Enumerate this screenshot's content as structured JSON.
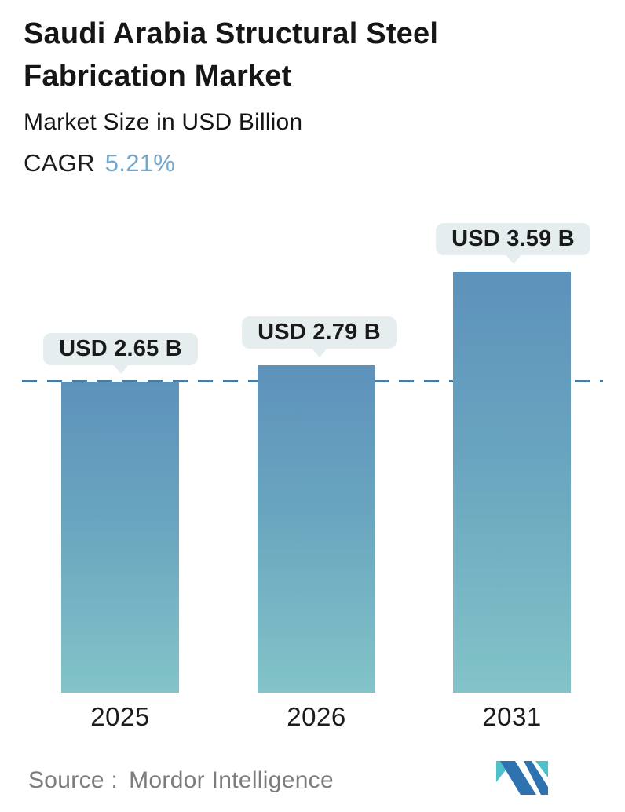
{
  "header": {
    "title": "Saudi Arabia Structural Steel\nFabrication Market",
    "subtitle": "Market Size in USD Billion",
    "cagr_label": "CAGR",
    "cagr_value": "5.21%"
  },
  "chart_data": {
    "type": "bar",
    "title": "Saudi Arabia Structural Steel Fabrication Market",
    "subtitle": "Market Size in USD Billion",
    "unit": "USD Billion",
    "categories": [
      "2025",
      "2026",
      "2031"
    ],
    "values": [
      2.65,
      2.79,
      3.59
    ],
    "value_labels": [
      "USD 2.65 B",
      "USD 2.79 B",
      "USD 3.59 B"
    ],
    "cagr_percent": 5.21,
    "ylim": [
      0,
      3.59
    ],
    "grid": "off",
    "legend": "none",
    "reference_line": {
      "style": "dashed",
      "at_value": 2.65,
      "color": "#4c7ba1"
    },
    "bar_colors": {
      "gradient_top": "#5d92bb",
      "gradient_bottom": "#82c4c8"
    },
    "label_bubble_color": "#e6edef",
    "accent_color": "#74a7cb"
  },
  "footer": {
    "source_label": "Source :",
    "source_value": "Mordor Intelligence",
    "logo": "mordor-intelligence-logo",
    "logo_colors": {
      "teal": "#4ec0c9",
      "blue": "#2e72b0"
    }
  }
}
